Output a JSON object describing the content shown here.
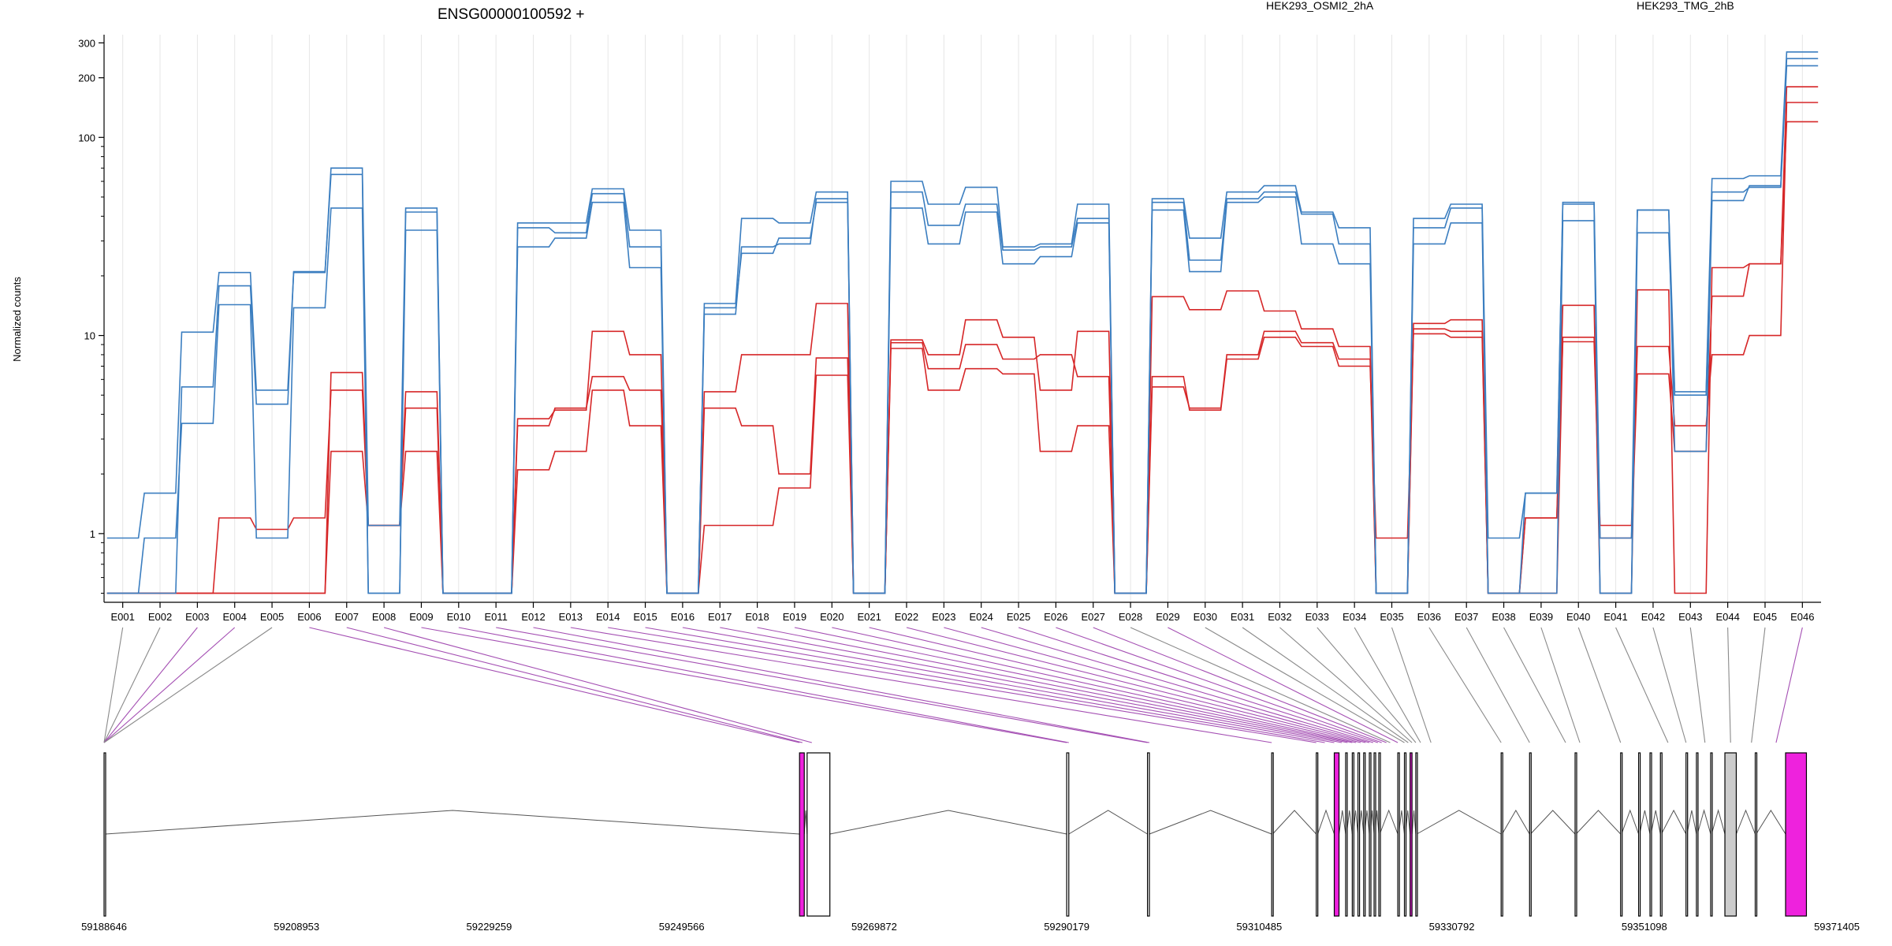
{
  "chart_data": {
    "type": "line",
    "title": "ENSG00000100592 +",
    "ylabel": "Normalized counts",
    "xlabel": "",
    "y_scale": "log",
    "ylim": [
      0.45,
      330
    ],
    "y_ticks": [
      {
        "value": 1,
        "label": "1"
      },
      {
        "value": 10,
        "label": "10"
      },
      {
        "value": 100,
        "label": "100"
      },
      {
        "value": 200,
        "label": "200"
      },
      {
        "value": 300,
        "label": "300"
      }
    ],
    "grid": "vertical",
    "legend": [
      {
        "label": "HEK293_OSMI2_2hA",
        "color": "#d62728"
      },
      {
        "label": "HEK293_TMG_2hB",
        "color": "#3b7ec0"
      }
    ],
    "categories": [
      "E001",
      "E002",
      "E003",
      "E004",
      "E005",
      "E006",
      "E007",
      "E008",
      "E009",
      "E010",
      "E011",
      "E012",
      "E013",
      "E014",
      "E015",
      "E016",
      "E017",
      "E018",
      "E019",
      "E020",
      "E021",
      "E022",
      "E023",
      "E024",
      "E025",
      "E026",
      "E027",
      "E028",
      "E029",
      "E030",
      "E031",
      "E032",
      "E033",
      "E034",
      "E035",
      "E036",
      "E037",
      "E038",
      "E039",
      "E040",
      "E041",
      "E042",
      "E043",
      "E044",
      "E045",
      "E046"
    ],
    "series": [
      {
        "color": "#d62728",
        "values": [
          0.5,
          0.5,
          0.5,
          0.5,
          0.5,
          0.5,
          6.5,
          1.1,
          5.2,
          0.5,
          0.5,
          3.8,
          4.2,
          10.5,
          8.0,
          0.5,
          5.2,
          8.0,
          8.0,
          14.5,
          0.5,
          9.5,
          8.0,
          12.0,
          9.8,
          5.3,
          10.5,
          0.5,
          15.7,
          13.5,
          16.8,
          13.3,
          10.8,
          8.8,
          0.5,
          11.5,
          12.0,
          0.5,
          1.2,
          14.2,
          0.5,
          17.0,
          0.5,
          22.0,
          23.0,
          180
        ]
      },
      {
        "color": "#d62728",
        "values": [
          0.5,
          0.5,
          0.5,
          1.2,
          1.05,
          1.2,
          5.3,
          1.1,
          4.3,
          0.5,
          0.5,
          3.5,
          4.3,
          6.2,
          5.3,
          0.5,
          4.3,
          3.5,
          2.0,
          7.7,
          0.5,
          9.2,
          6.8,
          9.0,
          7.6,
          8.0,
          6.2,
          0.5,
          5.5,
          4.3,
          8.0,
          10.5,
          9.2,
          7.6,
          0.5,
          10.8,
          10.5,
          0.5,
          0.5,
          9.8,
          1.1,
          8.8,
          3.5,
          8.0,
          10.0,
          150
        ]
      },
      {
        "color": "#d62728",
        "values": [
          0.5,
          0.5,
          0.5,
          0.5,
          0.5,
          0.5,
          2.6,
          1.1,
          2.6,
          0.5,
          0.5,
          2.1,
          2.6,
          5.3,
          3.5,
          0.5,
          1.1,
          1.1,
          1.7,
          6.3,
          0.5,
          8.6,
          5.3,
          6.8,
          6.4,
          2.6,
          3.5,
          0.5,
          6.2,
          4.2,
          7.6,
          9.8,
          8.8,
          7.0,
          0.95,
          10.2,
          9.8,
          0.5,
          1.2,
          9.3,
          0.95,
          6.4,
          2.6,
          15.8,
          23.0,
          120
        ]
      },
      {
        "color": "#3b7ec0",
        "values": [
          0.95,
          1.6,
          10.4,
          20.8,
          5.3,
          20.8,
          70,
          1.1,
          44,
          0.5,
          0.5,
          37,
          37,
          55,
          34,
          0.5,
          14.5,
          39,
          37,
          53,
          0.5,
          60,
          46,
          56,
          28,
          29,
          46,
          0.5,
          49,
          31,
          53,
          57,
          42,
          35,
          0.5,
          39,
          46,
          0.95,
          1.6,
          47,
          0.95,
          43,
          5.2,
          62,
          64,
          270
        ]
      },
      {
        "color": "#3b7ec0",
        "values": [
          0.5,
          0.95,
          3.6,
          14.3,
          0.95,
          13.8,
          44,
          0.5,
          42,
          0.5,
          0.5,
          35,
          33,
          52,
          28,
          0.5,
          12.8,
          28,
          29,
          49,
          0.5,
          53,
          36,
          46,
          27,
          28,
          39,
          0.5,
          47,
          24,
          49,
          53,
          41,
          29,
          0.5,
          35,
          44,
          0.5,
          1.6,
          46,
          0.5,
          43,
          2.6,
          48,
          57,
          250
        ]
      },
      {
        "color": "#3b7ec0",
        "values": [
          0.5,
          0.5,
          5.5,
          17.8,
          4.5,
          21.0,
          65,
          0.5,
          34,
          0.5,
          0.5,
          28,
          31,
          47,
          22,
          0.5,
          13.8,
          26,
          31,
          47,
          0.5,
          44,
          29,
          42,
          23,
          25,
          37,
          0.5,
          43,
          21,
          47,
          50,
          29,
          23,
          0.5,
          29,
          37,
          0.5,
          0.5,
          38,
          0.5,
          33,
          5.0,
          53,
          56,
          230
        ]
      }
    ],
    "exon_labels_mapped": [
      "E001",
      "E002",
      "E003",
      "E004",
      "E005",
      "E006",
      "E007",
      "E008",
      "E009",
      "E010",
      "E011",
      "E012",
      "E013",
      "E014",
      "E015",
      "E016",
      "E017",
      "E018",
      "E019",
      "E020",
      "E021",
      "E022",
      "E023",
      "E024",
      "E025",
      "E026",
      "E027",
      "E028",
      "E029",
      "E030",
      "E031",
      "E032",
      "E033",
      "E034",
      "E035",
      "E036",
      "E037",
      "E038",
      "E039",
      "E040",
      "E041",
      "E042",
      "E043",
      "E044",
      "E045",
      "E046"
    ],
    "genomic_axis": {
      "range": [
        59188646,
        59371405
      ],
      "tick_labels": [
        "59188646",
        "59208953",
        "59229259",
        "59249566",
        "59269872",
        "59290179",
        "59310485",
        "59330792",
        "59351098",
        "59371405"
      ]
    },
    "exon_coords": [
      59188646,
      59188646,
      59188646,
      59188646,
      59188646,
      59262000,
      59262300,
      59263300,
      59290179,
      59290400,
      59298700,
      59298900,
      59311800,
      59316500,
      59317400,
      59318400,
      59319200,
      59319800,
      59320300,
      59320700,
      59321200,
      59321700,
      59322100,
      59322500,
      59323000,
      59323400,
      59323900,
      59324300,
      59325100,
      59325800,
      59326200,
      59326600,
      59327000,
      59327500,
      59328600,
      59336000,
      59339000,
      59342800,
      59344300,
      59348600,
      59353600,
      59355500,
      59357500,
      59360200,
      59362400,
      59365000
    ],
    "exon_highlight": [
      0,
      0,
      1,
      1,
      0,
      1,
      1,
      1,
      1,
      1,
      1,
      1,
      1,
      1,
      1,
      1,
      1,
      1,
      1,
      1,
      1,
      1,
      1,
      1,
      1,
      1,
      1,
      0,
      1,
      0,
      0,
      0,
      0,
      0,
      0,
      0,
      0,
      0,
      0,
      0,
      0,
      0,
      0,
      0,
      0,
      1
    ],
    "blocks": [
      {
        "start": 59188646,
        "end": 59188800,
        "fill": "#ffffff"
      },
      {
        "start": 59262000,
        "end": 59262500,
        "fill": "#ee22dd"
      },
      {
        "start": 59262800,
        "end": 59265200,
        "fill": "#ffffff"
      },
      {
        "start": 59290179,
        "end": 59290400,
        "fill": "#ffffff"
      },
      {
        "start": 59298700,
        "end": 59298900,
        "fill": "#ffffff"
      },
      {
        "start": 59311800,
        "end": 59311900,
        "fill": "#ffffff"
      },
      {
        "start": 59316500,
        "end": 59316650,
        "fill": "#ffffff"
      },
      {
        "start": 59318400,
        "end": 59318900,
        "fill": "#ee22dd"
      },
      {
        "start": 59319600,
        "end": 59319700,
        "fill": "#ffffff"
      },
      {
        "start": 59320300,
        "end": 59320400,
        "fill": "#ffffff"
      },
      {
        "start": 59320900,
        "end": 59321000,
        "fill": "#ffffff"
      },
      {
        "start": 59321500,
        "end": 59321600,
        "fill": "#ffffff"
      },
      {
        "start": 59322100,
        "end": 59322200,
        "fill": "#ffffff"
      },
      {
        "start": 59322600,
        "end": 59322700,
        "fill": "#ffffff"
      },
      {
        "start": 59323100,
        "end": 59323200,
        "fill": "#ffffff"
      },
      {
        "start": 59325100,
        "end": 59325200,
        "fill": "#ffffff"
      },
      {
        "start": 59325800,
        "end": 59325900,
        "fill": "#ffffff"
      },
      {
        "start": 59326400,
        "end": 59326600,
        "fill": "#ee22dd"
      },
      {
        "start": 59327000,
        "end": 59327100,
        "fill": "#ffffff"
      },
      {
        "start": 59336000,
        "end": 59336100,
        "fill": "#ffffff"
      },
      {
        "start": 59339000,
        "end": 59339100,
        "fill": "#ffffff"
      },
      {
        "start": 59343800,
        "end": 59343900,
        "fill": "#ffffff"
      },
      {
        "start": 59348600,
        "end": 59348700,
        "fill": "#ffffff"
      },
      {
        "start": 59350500,
        "end": 59350600,
        "fill": "#ffffff"
      },
      {
        "start": 59351700,
        "end": 59351800,
        "fill": "#ffffff"
      },
      {
        "start": 59352800,
        "end": 59352900,
        "fill": "#ffffff"
      },
      {
        "start": 59355500,
        "end": 59355600,
        "fill": "#ffffff"
      },
      {
        "start": 59356600,
        "end": 59356700,
        "fill": "#ffffff"
      },
      {
        "start": 59358100,
        "end": 59358200,
        "fill": "#ffffff"
      },
      {
        "start": 59359600,
        "end": 59360800,
        "fill": "#cccccc"
      },
      {
        "start": 59362800,
        "end": 59362900,
        "fill": "#ffffff"
      },
      {
        "start": 59366000,
        "end": 59368200,
        "fill": "#ee22dd"
      }
    ]
  }
}
